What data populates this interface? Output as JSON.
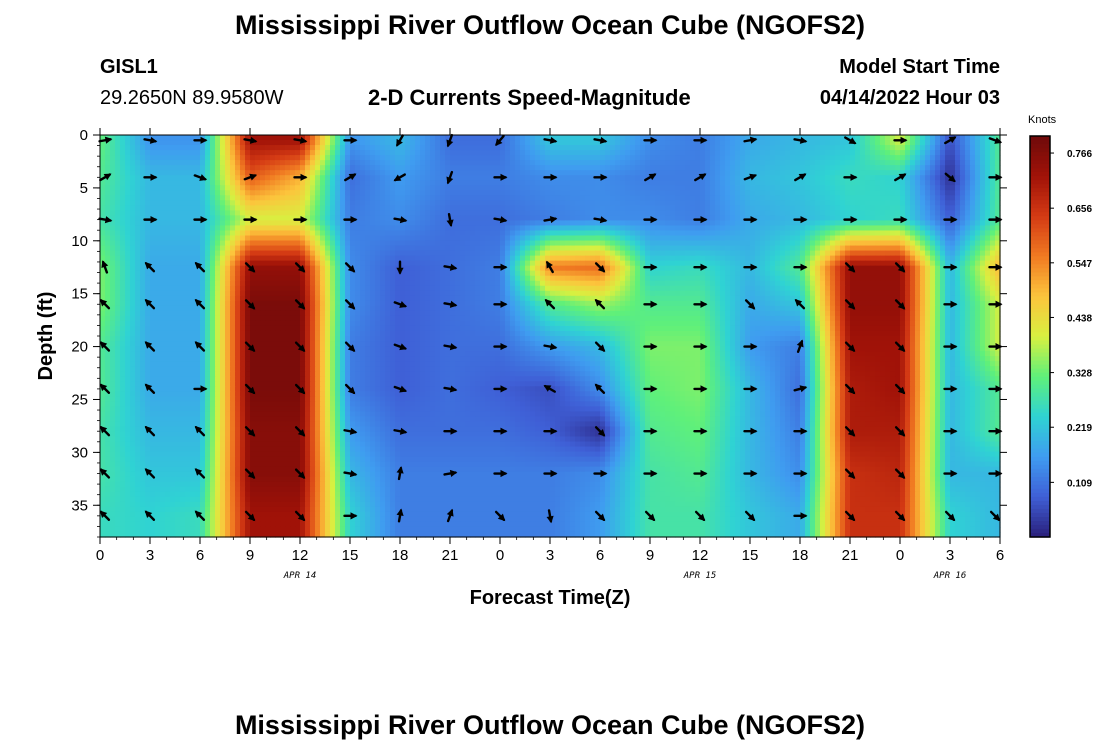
{
  "header": {
    "title": "Mississippi River Outflow Ocean Cube (NGOFS2)",
    "station_id": "GISL1",
    "station_coords": "29.2650N  89.9580W",
    "plot_title": "2-D Currents Speed-Magnitude",
    "model_start_label": "Model Start Time",
    "model_start_value": "04/14/2022 Hour 03"
  },
  "footer": {
    "title": "Mississippi River Outflow Ocean Cube (NGOFS2)"
  },
  "colorbar": {
    "unit": "Knots",
    "tick_labels": [
      "0.766",
      "0.656",
      "0.547",
      "0.438",
      "0.328",
      "0.219",
      "0.109"
    ],
    "tick_values": [
      0.766,
      0.656,
      0.547,
      0.438,
      0.328,
      0.219,
      0.109
    ],
    "vmin": 0.0,
    "vmax": 0.8,
    "colors": [
      "#2a1f7a",
      "#3f5fd6",
      "#3f9cf0",
      "#2fd3d3",
      "#5ff07a",
      "#d8f040",
      "#fcc43c",
      "#f07a22",
      "#d43a14",
      "#a01208",
      "#6e0a0a"
    ]
  },
  "chart_data": {
    "type": "heatmap",
    "title": "2-D Currents Speed-Magnitude",
    "xlabel": "Forecast Time(Z)",
    "ylabel": "Depth (ft)",
    "x_tick_values": [
      0,
      3,
      6,
      9,
      12,
      15,
      18,
      21,
      24,
      27,
      30,
      33,
      36,
      39,
      42,
      45,
      48,
      51,
      54
    ],
    "x_tick_labels": [
      "0",
      "3",
      "6",
      "9",
      "12",
      "15",
      "18",
      "21",
      "0",
      "3",
      "6",
      "9",
      "12",
      "15",
      "18",
      "21",
      "0",
      "3",
      "6"
    ],
    "xlim": [
      0,
      54
    ],
    "date_labels": [
      {
        "label": "APR 14",
        "x": 12
      },
      {
        "label": "APR 15",
        "x": 36
      },
      {
        "label": "APR 16",
        "x": 51
      }
    ],
    "y_tick_values": [
      0,
      5,
      10,
      15,
      20,
      25,
      30,
      35
    ],
    "y_tick_labels": [
      "0",
      "5",
      "10",
      "15",
      "20",
      "25",
      "30",
      "35"
    ],
    "ylim": [
      0,
      38
    ],
    "depth_levels_ft": [
      0.5,
      4,
      8,
      12.5,
      16,
      20,
      24,
      28,
      32,
      36
    ],
    "vector_times_h": [
      0,
      3,
      6,
      9,
      12,
      15,
      18,
      21,
      24,
      27,
      30,
      33,
      36,
      39,
      42,
      45,
      48,
      51,
      54
    ],
    "speed_knots_by_depth": [
      [
        0.32,
        0.15,
        0.15,
        0.72,
        0.72,
        0.15,
        0.2,
        0.1,
        0.1,
        0.22,
        0.22,
        0.14,
        0.12,
        0.18,
        0.2,
        0.22,
        0.4,
        0.06,
        0.3
      ],
      [
        0.3,
        0.2,
        0.2,
        0.6,
        0.5,
        0.1,
        0.16,
        0.12,
        0.12,
        0.14,
        0.14,
        0.12,
        0.12,
        0.2,
        0.22,
        0.26,
        0.24,
        0.02,
        0.3
      ],
      [
        0.28,
        0.2,
        0.2,
        0.4,
        0.4,
        0.12,
        0.14,
        0.1,
        0.1,
        0.12,
        0.14,
        0.14,
        0.12,
        0.18,
        0.2,
        0.24,
        0.26,
        0.08,
        0.3
      ],
      [
        0.34,
        0.18,
        0.18,
        0.74,
        0.74,
        0.14,
        0.08,
        0.1,
        0.12,
        0.56,
        0.58,
        0.24,
        0.26,
        0.2,
        0.3,
        0.74,
        0.74,
        0.2,
        0.5
      ],
      [
        0.34,
        0.18,
        0.18,
        0.78,
        0.78,
        0.14,
        0.08,
        0.1,
        0.12,
        0.3,
        0.36,
        0.3,
        0.3,
        0.18,
        0.22,
        0.74,
        0.74,
        0.2,
        0.4
      ],
      [
        0.3,
        0.18,
        0.18,
        0.78,
        0.78,
        0.12,
        0.08,
        0.1,
        0.1,
        0.16,
        0.2,
        0.34,
        0.34,
        0.16,
        0.12,
        0.72,
        0.72,
        0.2,
        0.4
      ],
      [
        0.3,
        0.18,
        0.18,
        0.78,
        0.78,
        0.12,
        0.08,
        0.1,
        0.08,
        0.06,
        0.14,
        0.32,
        0.34,
        0.2,
        0.1,
        0.7,
        0.72,
        0.2,
        0.3
      ],
      [
        0.28,
        0.2,
        0.2,
        0.76,
        0.76,
        0.16,
        0.1,
        0.1,
        0.1,
        0.08,
        0.02,
        0.3,
        0.32,
        0.2,
        0.12,
        0.7,
        0.7,
        0.2,
        0.3
      ],
      [
        0.28,
        0.22,
        0.22,
        0.76,
        0.76,
        0.2,
        0.12,
        0.12,
        0.12,
        0.12,
        0.14,
        0.28,
        0.3,
        0.2,
        0.14,
        0.66,
        0.68,
        0.2,
        0.2
      ],
      [
        0.26,
        0.24,
        0.26,
        0.72,
        0.72,
        0.24,
        0.12,
        0.12,
        0.12,
        0.12,
        0.16,
        0.28,
        0.28,
        0.22,
        0.18,
        0.66,
        0.66,
        0.24,
        0.2
      ]
    ],
    "direction_deg_by_depth": [
      [
        80,
        100,
        90,
        100,
        100,
        90,
        210,
        200,
        220,
        100,
        100,
        90,
        90,
        80,
        100,
        120,
        90,
        60,
        110
      ],
      [
        60,
        90,
        110,
        70,
        90,
        60,
        240,
        200,
        90,
        90,
        90,
        60,
        60,
        70,
        60,
        90,
        60,
        130,
        90
      ],
      [
        100,
        90,
        90,
        90,
        90,
        90,
        100,
        170,
        100,
        80,
        100,
        90,
        90,
        90,
        90,
        90,
        90,
        90,
        90
      ],
      [
        340,
        315,
        315,
        135,
        135,
        135,
        180,
        100,
        90,
        330,
        135,
        90,
        90,
        90,
        90,
        135,
        135,
        90,
        90
      ],
      [
        315,
        315,
        315,
        135,
        135,
        135,
        110,
        100,
        90,
        315,
        315,
        90,
        90,
        135,
        315,
        135,
        135,
        90,
        90
      ],
      [
        315,
        315,
        315,
        135,
        135,
        135,
        110,
        100,
        90,
        100,
        135,
        90,
        90,
        90,
        20,
        135,
        135,
        90,
        90
      ],
      [
        315,
        315,
        90,
        135,
        135,
        135,
        110,
        100,
        90,
        300,
        315,
        90,
        90,
        90,
        75,
        135,
        135,
        90,
        90
      ],
      [
        315,
        315,
        315,
        135,
        135,
        100,
        100,
        90,
        90,
        90,
        135,
        90,
        90,
        90,
        90,
        135,
        135,
        90,
        90
      ],
      [
        315,
        315,
        315,
        135,
        135,
        100,
        10,
        80,
        90,
        90,
        90,
        90,
        90,
        90,
        90,
        135,
        135,
        90,
        90
      ],
      [
        315,
        315,
        315,
        135,
        135,
        90,
        10,
        20,
        135,
        170,
        135,
        135,
        135,
        135,
        90,
        135,
        135,
        135,
        135
      ]
    ]
  }
}
